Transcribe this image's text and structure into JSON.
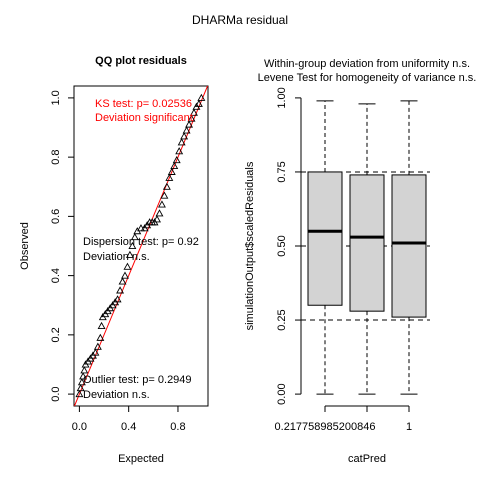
{
  "main_title": "DHARMa residual",
  "colors": {
    "red": "#ff0000",
    "box_fill": "#d3d3d3",
    "black": "#000000"
  },
  "chart_data": [
    {
      "type": "scatter",
      "title": "QQ plot residuals",
      "xlabel": "Expected",
      "ylabel": "Observed",
      "xlim": [
        0,
        1
      ],
      "ylim": [
        0,
        1
      ],
      "xticks": [
        "0.0",
        "0.4",
        "0.8"
      ],
      "yticks": [
        "0.0",
        "0.2",
        "0.4",
        "0.6",
        "0.8",
        "1.0"
      ],
      "marker": "open-triangle",
      "reference_line": "y = x (red)",
      "annotations": {
        "ks": [
          "KS test: p= 0.02536",
          "Deviation  significant"
        ],
        "dispersion": [
          "Dispersion test: p= 0.92",
          "Deviation  n.s."
        ],
        "outlier": [
          "Outlier test: p= 0.2949",
          "Deviation  n.s."
        ]
      },
      "points": [
        [
          0.0,
          0.0
        ],
        [
          0.01,
          0.02
        ],
        [
          0.02,
          0.04
        ],
        [
          0.03,
          0.06
        ],
        [
          0.04,
          0.08
        ],
        [
          0.05,
          0.1
        ],
        [
          0.07,
          0.11
        ],
        [
          0.09,
          0.12
        ],
        [
          0.11,
          0.13
        ],
        [
          0.13,
          0.14
        ],
        [
          0.15,
          0.16
        ],
        [
          0.17,
          0.19
        ],
        [
          0.18,
          0.23
        ],
        [
          0.19,
          0.26
        ],
        [
          0.21,
          0.27
        ],
        [
          0.23,
          0.28
        ],
        [
          0.25,
          0.29
        ],
        [
          0.27,
          0.3
        ],
        [
          0.29,
          0.31
        ],
        [
          0.31,
          0.32
        ],
        [
          0.33,
          0.35
        ],
        [
          0.35,
          0.38
        ],
        [
          0.37,
          0.4
        ],
        [
          0.39,
          0.43
        ],
        [
          0.41,
          0.47
        ],
        [
          0.43,
          0.5
        ],
        [
          0.45,
          0.53
        ],
        [
          0.47,
          0.55
        ],
        [
          0.5,
          0.56
        ],
        [
          0.53,
          0.56
        ],
        [
          0.55,
          0.57
        ],
        [
          0.57,
          0.58
        ],
        [
          0.59,
          0.58
        ],
        [
          0.61,
          0.58
        ],
        [
          0.63,
          0.59
        ],
        [
          0.65,
          0.61
        ],
        [
          0.67,
          0.64
        ],
        [
          0.69,
          0.67
        ],
        [
          0.71,
          0.7
        ],
        [
          0.73,
          0.73
        ],
        [
          0.75,
          0.75
        ],
        [
          0.77,
          0.77
        ],
        [
          0.79,
          0.79
        ],
        [
          0.81,
          0.82
        ],
        [
          0.83,
          0.85
        ],
        [
          0.85,
          0.87
        ],
        [
          0.87,
          0.89
        ],
        [
          0.89,
          0.91
        ],
        [
          0.91,
          0.93
        ],
        [
          0.93,
          0.95
        ],
        [
          0.95,
          0.97
        ],
        [
          0.97,
          0.98
        ],
        [
          0.99,
          1.0
        ]
      ]
    },
    {
      "type": "box",
      "title_lines": [
        "Within-group deviation from uniformity n.s.",
        "Levene Test for homogeneity of variance n.s."
      ],
      "xlabel": "catPred",
      "ylabel": "simulationOutput$scaledResiduals",
      "ylim": [
        0,
        1
      ],
      "yticks": [
        "0.00",
        "0.25",
        "0.50",
        "0.75",
        "1.00"
      ],
      "categories": [
        "0.217758985200846",
        "",
        "1"
      ],
      "reference_lines": [
        0.25,
        0.5,
        0.75
      ],
      "boxes": [
        {
          "whisker_low": 0.0,
          "q1": 0.3,
          "median": 0.55,
          "q3": 0.75,
          "whisker_high": 0.99
        },
        {
          "whisker_low": 0.0,
          "q1": 0.28,
          "median": 0.53,
          "q3": 0.74,
          "whisker_high": 0.98
        },
        {
          "whisker_low": 0.0,
          "q1": 0.26,
          "median": 0.51,
          "q3": 0.74,
          "whisker_high": 0.99
        }
      ]
    }
  ]
}
